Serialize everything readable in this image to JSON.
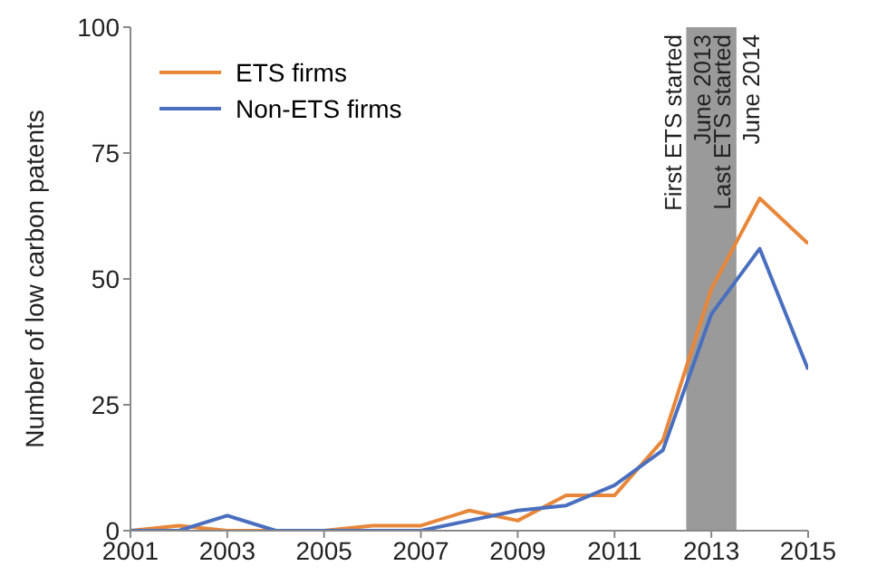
{
  "chart_data": {
    "type": "line",
    "ylabel": "Number of low carbon patents",
    "x": [
      2001,
      2002,
      2003,
      2004,
      2005,
      2006,
      2007,
      2008,
      2009,
      2010,
      2011,
      2012,
      2013,
      2014,
      2015
    ],
    "series": [
      {
        "name": "ETS firms",
        "color": "#e8873a",
        "values": [
          0,
          1,
          0,
          0,
          0,
          1,
          1,
          4,
          2,
          7,
          7,
          18,
          48,
          66,
          57
        ]
      },
      {
        "name": "Non-ETS firms",
        "color": "#4a6fbf",
        "values": [
          0,
          0,
          3,
          0,
          0,
          0,
          0,
          2,
          4,
          5,
          9,
          16,
          43,
          56,
          32
        ]
      }
    ],
    "xlim": [
      2001,
      2015
    ],
    "xticks": [
      2001,
      2003,
      2005,
      2007,
      2009,
      2011,
      2013,
      2015
    ],
    "ylim": [
      0,
      100
    ],
    "yticks": [
      0,
      25,
      50,
      75,
      100
    ],
    "bands": [
      {
        "axis": "x",
        "from": 2012.5,
        "to": 2013.5,
        "color": "#9a9a9a"
      }
    ],
    "ref_lines": [
      {
        "axis": "x",
        "value": 2012.5,
        "label": "First ETS started\nJune 2013",
        "color": "#9a9a9a"
      },
      {
        "axis": "x",
        "value": 2013.5,
        "label": "Last ETS started\nJune 2014",
        "color": "#9a9a9a"
      }
    ],
    "grid": false,
    "legend": "top left",
    "marker": "none",
    "line_style": "solid"
  }
}
